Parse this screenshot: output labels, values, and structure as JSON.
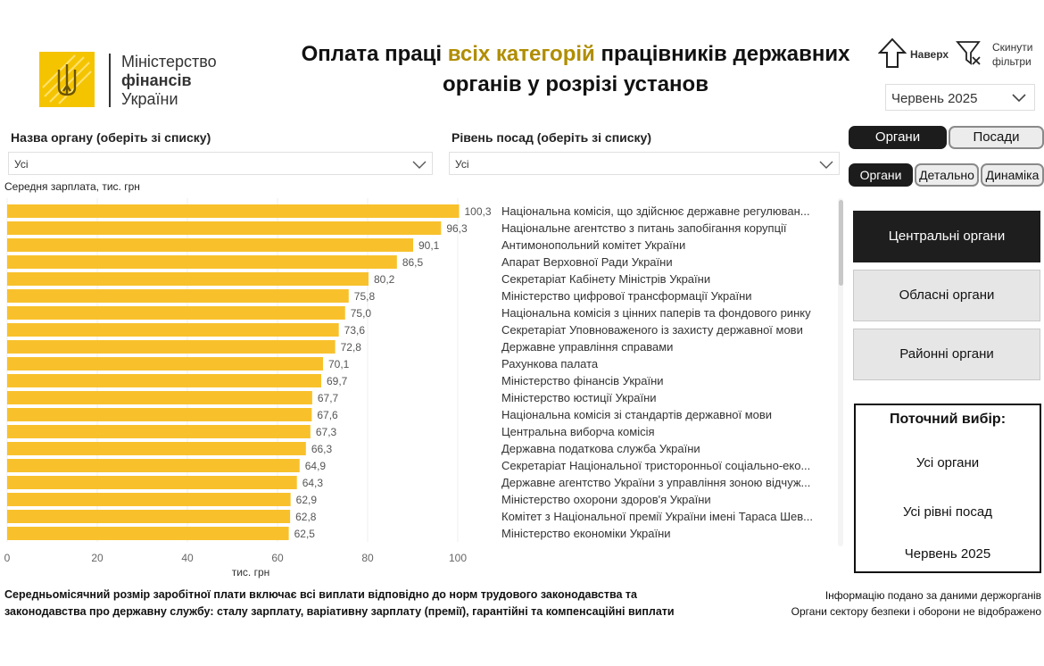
{
  "logo": {
    "line1": "Міністерство",
    "line2": "фінансів",
    "line3": "України"
  },
  "title": {
    "line1_a": "Оплата праці ",
    "line1_b": "всіх категорій",
    "line1_c": " працівників державних",
    "line2": "органів у розрізі установ"
  },
  "tools": {
    "up_label": "Наверх",
    "reset_label_1": "Скинути",
    "reset_label_2": "фільтри"
  },
  "month": {
    "selected": "Червень 2025"
  },
  "filters": {
    "organ_label": "Назва органу (оберіть зі списку)",
    "organ_value": "Усі",
    "level_label": "Рівень посад (оберіть зі списку)",
    "level_value": "Усі"
  },
  "chart_subtitle": "Середня зарплата, тис. грн",
  "chart_data": {
    "type": "bar",
    "orientation": "horizontal",
    "title": "Середня зарплата, тис. грн",
    "xlabel": "тис. грн",
    "xlim": [
      0,
      100
    ],
    "xticks": [
      0,
      20,
      40,
      60,
      80,
      100
    ],
    "bar_color": "#f8c12c",
    "categories": [
      "Національна комісія, що здійснює державне регулюван...",
      "Національне агентство з питань запобігання корупції",
      "Антимонопольний комітет України",
      "Апарат Верховної Ради України",
      "Секретаріат Кабінету Міністрів України",
      "Міністерство цифрової трансформації України",
      "Національна комісія з цінних паперів та фондового ринку",
      "Секретаріат Уповноваженого із захисту державної мови",
      "Державне управління справами",
      "Рахункова палата",
      "Міністерство фінансів України",
      "Міністерство юстиції України",
      "Національна комісія зі стандартів державної мови",
      "Центральна виборча комісія",
      "Державна податкова служба України",
      "Секретаріат Національної тристоронньої соціально-еко...",
      "Державне агентство України з управління зоною відчуж...",
      "Міністерство охорони здоров'я України",
      "Комітет з Національної премії України імені Тараса Шев...",
      "Міністерство економіки України"
    ],
    "values": [
      100.3,
      96.3,
      90.1,
      86.5,
      80.2,
      75.8,
      75.0,
      73.6,
      72.8,
      70.1,
      69.7,
      67.7,
      67.6,
      67.3,
      66.3,
      64.9,
      64.3,
      62.9,
      62.8,
      62.5
    ],
    "value_labels": [
      "100,3",
      "96,3",
      "90,1",
      "86,5",
      "80,2",
      "75,8",
      "75,0",
      "73,6",
      "72,8",
      "70,1",
      "69,7",
      "67,7",
      "67,6",
      "67,3",
      "66,3",
      "64,9",
      "64,3",
      "62,9",
      "62,8",
      "62,5"
    ]
  },
  "tabs_top": [
    {
      "label": "Органи",
      "active": true
    },
    {
      "label": "Посади",
      "active": false
    }
  ],
  "tabs_view": [
    {
      "label": "Органи",
      "active": true
    },
    {
      "label": "Детально",
      "active": false
    },
    {
      "label": "Динаміка",
      "active": false
    }
  ],
  "levels": [
    {
      "label": "Центральні органи",
      "active": true
    },
    {
      "label": "Обласні органи",
      "active": false
    },
    {
      "label": "Районні органи",
      "active": false
    }
  ],
  "current": {
    "header": "Поточний вибір:",
    "organs": "Усі органи",
    "levels": "Усі рівні посад",
    "month": "Червень 2025"
  },
  "footnote": {
    "line1": "Середньомісячний розмір заробітної плати включає всі виплати відповідно до норм трудового законодавства та",
    "line2": "законодавства про державну службу: сталу зарплату, варіативну зарплату (премії), гарантійні та компенсаційні виплати"
  },
  "source": {
    "line1": "Інформацію подано за даними держорганів",
    "line2": "Органи сектору безпеки і оборони не відображено"
  }
}
